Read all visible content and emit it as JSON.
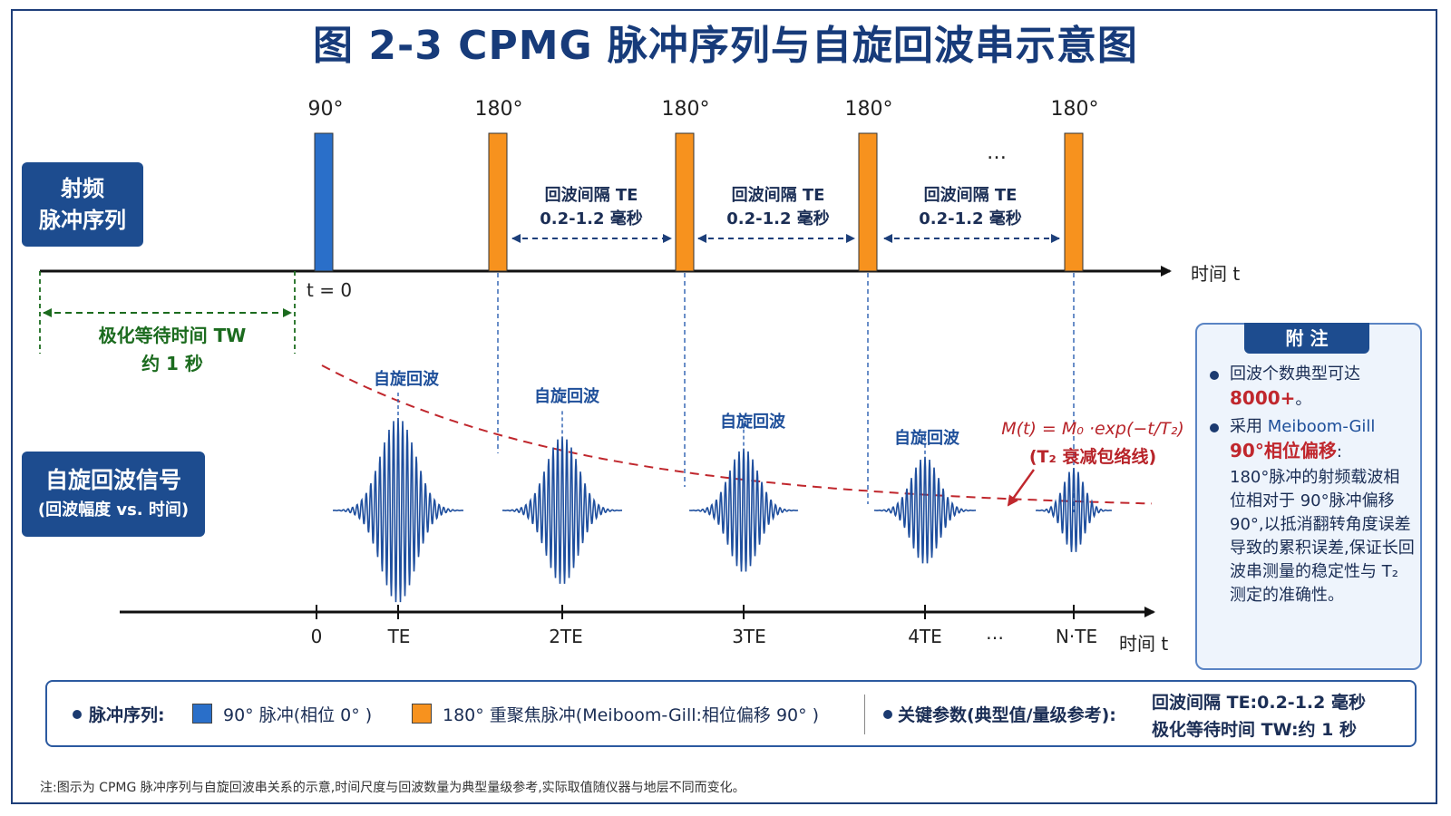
{
  "title": "图 2-3  CPMG 脉冲序列与自旋回波串示意图",
  "rf_badge": [
    "射频",
    "脉冲序列"
  ],
  "signal_badge": {
    "line1": "自旋回波信号",
    "line2": "(回波幅度 vs. 时间)"
  },
  "pulses": [
    {
      "label": "90°",
      "type": "90"
    },
    {
      "label": "180°",
      "type": "180"
    },
    {
      "label": "180°",
      "type": "180"
    },
    {
      "label": "180°",
      "type": "180"
    },
    {
      "label": "180°",
      "type": "180"
    }
  ],
  "ellipsis": "…",
  "te_intervals": [
    {
      "line1": "回波间隔 TE",
      "line2": "0.2-1.2 毫秒"
    },
    {
      "line1": "回波间隔 TE",
      "line2": "0.2-1.2 毫秒"
    },
    {
      "line1": "回波间隔 TE",
      "line2": "0.2-1.2 毫秒"
    }
  ],
  "axis_label": "时间 t",
  "t0_label": "t = 0",
  "tw": {
    "line1": "极化等待时间 TW",
    "line2": "约 1 秒"
  },
  "echo_label": "自旋回波",
  "echo_amplitudes": [
    1.0,
    0.8,
    0.67,
    0.58,
    0.46
  ],
  "envelope": {
    "formula": "M(t) = M₀ ·exp(−t/T₂)",
    "caption": "(T₂ 衰减包络线)"
  },
  "echo_ticks": [
    "0",
    "TE",
    "2TE",
    "3TE",
    "4TE",
    "…",
    "N·TE"
  ],
  "notes": {
    "heading": "附 注",
    "item1": {
      "text": "回波个数典型可达",
      "highlight": "8000+",
      "suffix": "。"
    },
    "item2": {
      "prefix": "采用",
      "name": "Meiboom-Gill",
      "highlight": "90°相位偏移",
      "colon": ":",
      "body": "180°脉冲的射频载波相位相对于 90°脉冲偏移 90°,以抵消翻转角度误差导致的累积误差,保证长回波串测量的稳定性与 T₂ 测定的准确性。"
    }
  },
  "legend": {
    "pulse_seq": "脉冲序列:",
    "pulse90": "90° 脉冲(相位 0° )",
    "pulse180": "180° 重聚焦脉冲(Meiboom-Gill:相位偏移 90° )",
    "key_params": "关键参数(典型值/量级参考):",
    "param1": "回波间隔 TE:0.2-1.2 毫秒",
    "param2": "极化等待时间 TW:约 1 秒"
  },
  "footnote": "注:图示为 CPMG 脉冲序列与自旋回波串关系的示意,时间尺度与回波数量为典型量级参考,实际取值随仪器与地层不同而变化。",
  "colors": {
    "pulse90": "#2a6fc9",
    "pulse180": "#f7921e",
    "echo": "#1f4f9e",
    "envelope": "#c0272d",
    "tw": "#1b6b1e",
    "navy": "#1d4c8f"
  }
}
